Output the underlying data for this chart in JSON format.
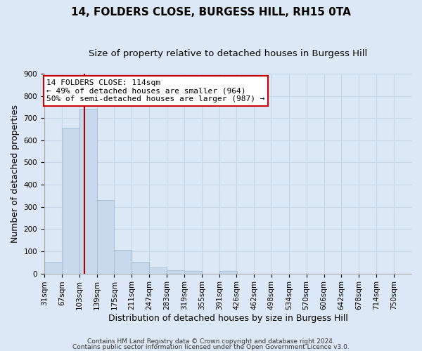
{
  "title": "14, FOLDERS CLOSE, BURGESS HILL, RH15 0TA",
  "subtitle": "Size of property relative to detached houses in Burgess Hill",
  "xlabel": "Distribution of detached houses by size in Burgess Hill",
  "ylabel": "Number of detached properties",
  "bin_labels": [
    "31sqm",
    "67sqm",
    "103sqm",
    "139sqm",
    "175sqm",
    "211sqm",
    "247sqm",
    "283sqm",
    "319sqm",
    "355sqm",
    "391sqm",
    "426sqm",
    "462sqm",
    "498sqm",
    "534sqm",
    "570sqm",
    "606sqm",
    "642sqm",
    "678sqm",
    "714sqm",
    "750sqm"
  ],
  "bin_edges": [
    31,
    67,
    103,
    139,
    175,
    211,
    247,
    283,
    319,
    355,
    391,
    426,
    462,
    498,
    534,
    570,
    606,
    642,
    678,
    714,
    750
  ],
  "bar_heights": [
    52,
    658,
    743,
    330,
    107,
    52,
    27,
    15,
    10,
    0,
    10,
    0,
    0,
    0,
    0,
    0,
    0,
    0,
    0,
    0
  ],
  "bar_color": "#c9d9ed",
  "bar_edge_color": "#a8bfcf",
  "vline_x": 114,
  "vline_color": "#aa0000",
  "ylim": [
    0,
    900
  ],
  "yticks": [
    0,
    100,
    200,
    300,
    400,
    500,
    600,
    700,
    800,
    900
  ],
  "annotation_text": "14 FOLDERS CLOSE: 114sqm\n← 49% of detached houses are smaller (964)\n50% of semi-detached houses are larger (987) →",
  "annotation_box_color": "#ffffff",
  "annotation_box_edge": "#cc0000",
  "footer_line1": "Contains HM Land Registry data © Crown copyright and database right 2024.",
  "footer_line2": "Contains public sector information licensed under the Open Government Licence v3.0.",
  "background_color": "#dce8f5",
  "grid_color": "#c5d5e8",
  "title_fontsize": 11,
  "subtitle_fontsize": 9.5,
  "axis_label_fontsize": 9,
  "tick_fontsize": 7.5,
  "annotation_fontsize": 8,
  "footer_fontsize": 6.5
}
